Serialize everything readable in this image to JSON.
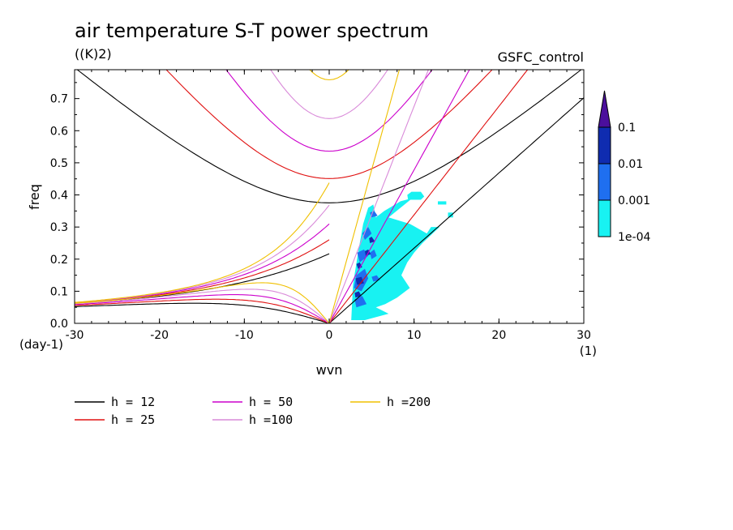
{
  "chart_data": {
    "type": "contour",
    "title": "air temperature S-T power spectrum",
    "units": "((K)2)",
    "experiment": "GSFC_control",
    "xlabel": "wvn",
    "ylabel": "freq",
    "x_unit": "(1)",
    "y_unit": "(day-1)",
    "xlim": [
      -30,
      30
    ],
    "ylim": [
      0,
      0.79
    ],
    "xticks": [
      "-30",
      "-20",
      "-10",
      "0",
      "10",
      "20",
      "30"
    ],
    "yticks": [
      "0.0",
      "0.1",
      "0.2",
      "0.3",
      "0.4",
      "0.5",
      "0.6",
      "0.7"
    ],
    "colorbar": {
      "labels": [
        "0.1",
        "0.01",
        "0.001",
        "1e-04"
      ],
      "colors": [
        "#4b0f9c",
        "#0f2cb0",
        "#1f6ff0",
        "#18f2f2"
      ]
    },
    "dispersion_curves": [
      {
        "label": "h = 12",
        "h": 12,
        "color": "#000000"
      },
      {
        "label": "h = 25",
        "h": 25,
        "color": "#e01010"
      },
      {
        "label": "h = 50",
        "h": 50,
        "color": "#cc00cc"
      },
      {
        "label": "h =100",
        "h": 100,
        "color": "#d98ad9"
      },
      {
        "label": "h =200",
        "h": 200,
        "color": "#f0c000"
      }
    ],
    "power_regions": [
      {
        "level": "1e-04",
        "points": [
          [
            2.6,
            0.01
          ],
          [
            2.8,
            0.12
          ],
          [
            3.4,
            0.22
          ],
          [
            4.0,
            0.31
          ],
          [
            4.6,
            0.36
          ],
          [
            5.2,
            0.37
          ],
          [
            5.5,
            0.33
          ],
          [
            6.5,
            0.35
          ],
          [
            8.4,
            0.38
          ],
          [
            9.8,
            0.39
          ],
          [
            7.0,
            0.33
          ],
          [
            9.5,
            0.31
          ],
          [
            11.5,
            0.28
          ],
          [
            12.0,
            0.3
          ],
          [
            13.0,
            0.3
          ],
          [
            11.0,
            0.25
          ],
          [
            10.0,
            0.22
          ],
          [
            9.2,
            0.19
          ],
          [
            8.5,
            0.15
          ],
          [
            9.5,
            0.11
          ],
          [
            8.0,
            0.08
          ],
          [
            6.6,
            0.06
          ],
          [
            5.5,
            0.05
          ],
          [
            7.0,
            0.03
          ],
          [
            4.2,
            0.01
          ]
        ]
      },
      {
        "level": "1e-04",
        "points": [
          [
            9.3,
            0.385
          ],
          [
            10.8,
            0.385
          ],
          [
            11.2,
            0.395
          ],
          [
            10.8,
            0.41
          ],
          [
            9.7,
            0.41
          ],
          [
            9.2,
            0.4
          ]
        ]
      },
      {
        "level": "1e-04",
        "points": [
          [
            12.8,
            0.37
          ],
          [
            13.8,
            0.37
          ],
          [
            13.8,
            0.38
          ],
          [
            12.8,
            0.38
          ]
        ]
      },
      {
        "level": "1e-04",
        "points": [
          [
            14.0,
            0.33
          ],
          [
            14.6,
            0.33
          ],
          [
            14.6,
            0.345
          ],
          [
            14.0,
            0.345
          ]
        ]
      },
      {
        "level": "0.001",
        "points": [
          [
            3.8,
            0.1
          ],
          [
            4.6,
            0.14
          ],
          [
            4.2,
            0.17
          ],
          [
            3.2,
            0.15
          ],
          [
            2.9,
            0.11
          ]
        ]
      },
      {
        "level": "0.001",
        "points": [
          [
            3.6,
            0.19
          ],
          [
            4.6,
            0.21
          ],
          [
            4.1,
            0.23
          ],
          [
            3.3,
            0.22
          ]
        ]
      },
      {
        "level": "0.001",
        "points": [
          [
            4.2,
            0.26
          ],
          [
            5.0,
            0.28
          ],
          [
            4.6,
            0.3
          ],
          [
            3.9,
            0.28
          ]
        ]
      },
      {
        "level": "0.001",
        "points": [
          [
            5.0,
            0.2
          ],
          [
            5.6,
            0.21
          ],
          [
            5.3,
            0.23
          ],
          [
            4.8,
            0.22
          ]
        ]
      },
      {
        "level": "0.001",
        "points": [
          [
            3.2,
            0.05
          ],
          [
            4.4,
            0.06
          ],
          [
            3.9,
            0.085
          ],
          [
            3.0,
            0.075
          ]
        ]
      },
      {
        "level": "0.001",
        "points": [
          [
            5.2,
            0.13
          ],
          [
            6.0,
            0.135
          ],
          [
            5.6,
            0.15
          ],
          [
            5.0,
            0.145
          ]
        ]
      },
      {
        "level": "0.001",
        "points": [
          [
            5.0,
            0.33
          ],
          [
            5.7,
            0.335
          ],
          [
            5.3,
            0.35
          ],
          [
            4.8,
            0.345
          ]
        ]
      },
      {
        "level": "0.01",
        "points": [
          [
            3.3,
            0.12
          ],
          [
            4.1,
            0.125
          ],
          [
            3.8,
            0.145
          ],
          [
            3.1,
            0.14
          ]
        ]
      },
      {
        "level": "0.01",
        "points": [
          [
            4.3,
            0.21
          ],
          [
            4.9,
            0.215
          ],
          [
            4.6,
            0.23
          ],
          [
            4.2,
            0.225
          ]
        ]
      },
      {
        "level": "0.01",
        "points": [
          [
            3.4,
            0.17
          ],
          [
            3.9,
            0.175
          ],
          [
            3.6,
            0.19
          ],
          [
            3.2,
            0.185
          ]
        ]
      },
      {
        "level": "0.01",
        "points": [
          [
            4.8,
            0.25
          ],
          [
            5.4,
            0.255
          ],
          [
            5.0,
            0.27
          ],
          [
            4.7,
            0.265
          ]
        ]
      },
      {
        "level": "0.01",
        "points": [
          [
            3.1,
            0.08
          ],
          [
            3.8,
            0.085
          ],
          [
            3.5,
            0.1
          ],
          [
            3.0,
            0.095
          ]
        ]
      }
    ]
  }
}
